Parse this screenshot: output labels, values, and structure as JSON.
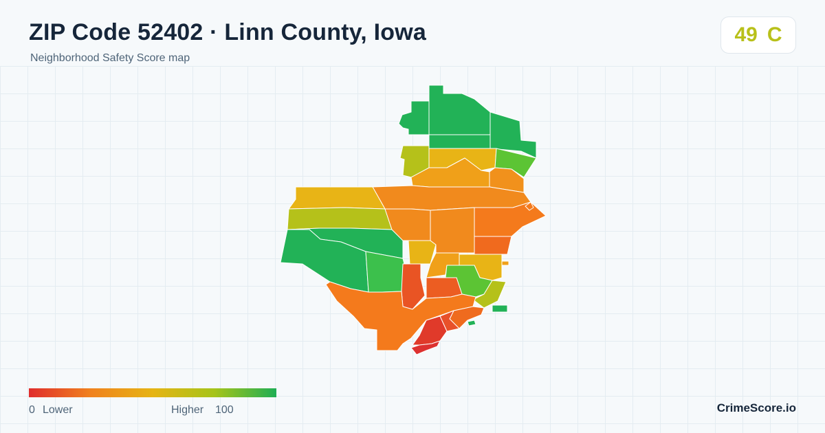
{
  "header": {
    "title": "ZIP Code 52402 · Linn County, Iowa",
    "subtitle": "Neighborhood Safety Score map"
  },
  "score_badge": {
    "score": "49",
    "grade": "C",
    "color": "#b8c01a"
  },
  "legend": {
    "min_value": "0",
    "min_label": "Lower",
    "max_label": "Higher",
    "max_value": "100",
    "gradient_colors": [
      "#e02d2d",
      "#f0821e",
      "#e6b414",
      "#a6c41a",
      "#1fae54"
    ]
  },
  "brand": {
    "name": "CrimeScore.io"
  },
  "map": {
    "color_scale": "red (lower) to green (higher)",
    "colors": {
      "red": "#e03a2a",
      "red_orange": "#e95424",
      "orange": "#f47a1c",
      "amber": "#f19a1c",
      "yellow_orange": "#e8b416",
      "yellow_green": "#b5c11a",
      "light_green": "#5cc434",
      "green": "#3cc04c",
      "dark_green": "#22b257",
      "boundary": "#ffffff"
    }
  }
}
